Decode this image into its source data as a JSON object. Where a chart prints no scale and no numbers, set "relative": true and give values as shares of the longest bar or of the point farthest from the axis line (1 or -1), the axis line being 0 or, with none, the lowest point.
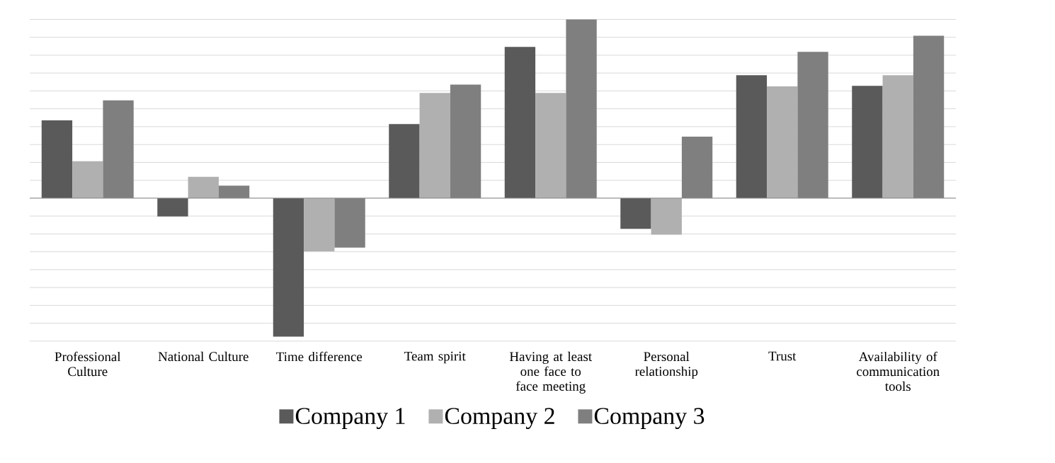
{
  "chart_data": {
    "type": "bar",
    "relative": true,
    "grid": "y",
    "legend": "bottom",
    "categories": [
      "Professional Culture",
      "National Culture",
      "Time difference",
      "Team spirit",
      "Having at least one face to face meeting",
      "Personal relationship",
      "Trust",
      "Availability of communication tools"
    ],
    "series": [
      {
        "name": "Company 1",
        "color": "#5a5a5a",
        "values": [
          0.435,
          -0.102,
          -0.775,
          0.414,
          0.846,
          -0.172,
          0.688,
          0.628
        ]
      },
      {
        "name": "Company 2",
        "color": "#b0b0b0",
        "values": [
          0.207,
          0.119,
          -0.298,
          0.589,
          0.589,
          -0.204,
          0.625,
          0.688
        ]
      },
      {
        "name": "Company 3",
        "color": "#7f7f7f",
        "values": [
          0.547,
          0.07,
          -0.277,
          0.635,
          1,
          0.344,
          0.818,
          0.909
        ]
      }
    ]
  }
}
